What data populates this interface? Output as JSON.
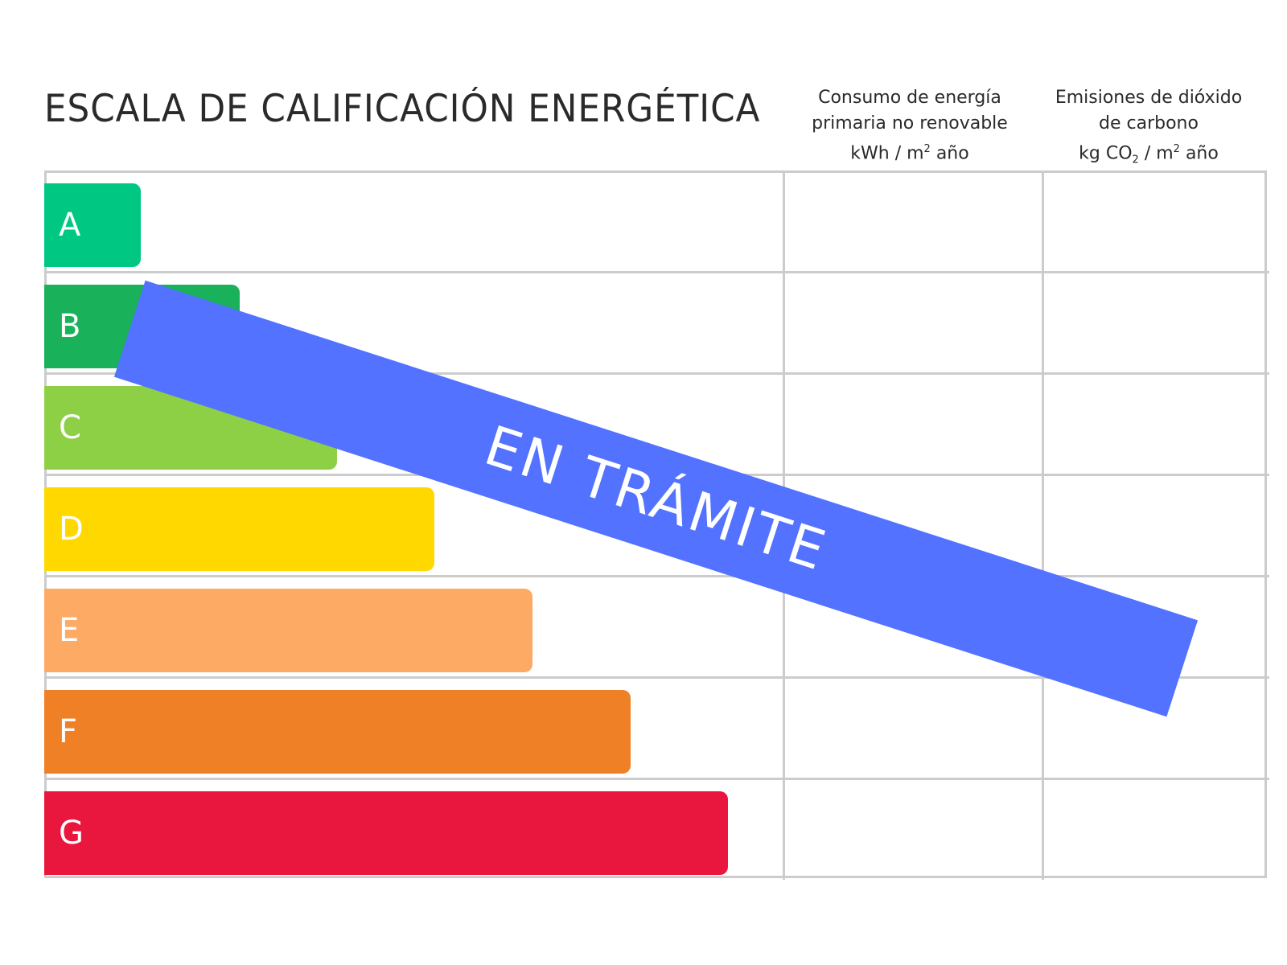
{
  "title": "ESCALA DE CALIFICACIÓN ENERGÉTICA",
  "columns": [
    {
      "line1": "Consumo de energía",
      "line2": "primaria no renovable",
      "unit_prefix": "kWh / m",
      "unit_sup": "2",
      "unit_suffix": " año"
    },
    {
      "line1": "Emisiones de dióxido",
      "line2": "de carbono",
      "unit_prefix": "kg CO",
      "unit_sub": "2",
      "unit_mid": " / m",
      "unit_sup": "2",
      "unit_suffix": " año"
    }
  ],
  "ratings": [
    {
      "label": "A",
      "color": "#00c883"
    },
    {
      "label": "B",
      "color": "#19b15a"
    },
    {
      "label": "C",
      "color": "#8ed045"
    },
    {
      "label": "D",
      "color": "#ffd800"
    },
    {
      "label": "E",
      "color": "#fdaa65"
    },
    {
      "label": "F",
      "color": "#ef8026"
    },
    {
      "label": "G",
      "color": "#e9163d"
    }
  ],
  "stamp": {
    "text": "EN TRÁMITE",
    "color": "#5272ff"
  }
}
